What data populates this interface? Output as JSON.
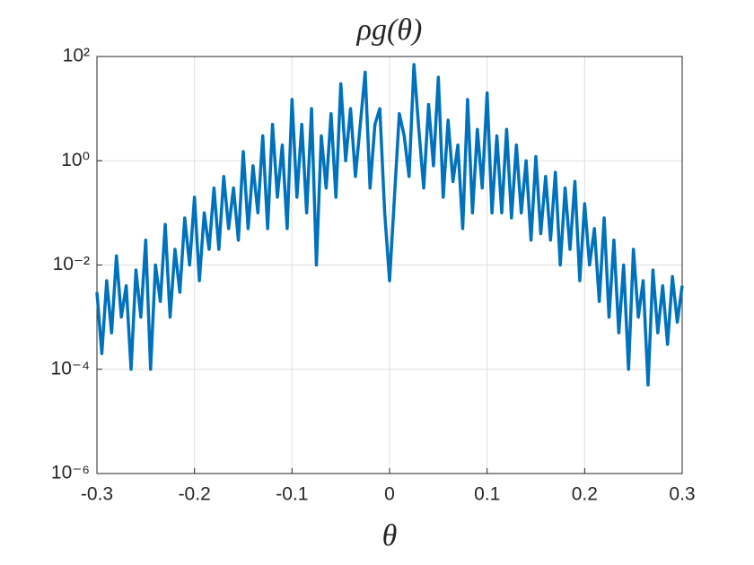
{
  "chart_data": {
    "type": "line",
    "title": "ρg(θ)",
    "xlabel": "θ",
    "x": [
      -0.3,
      -0.295,
      -0.29,
      -0.285,
      -0.28,
      -0.275,
      -0.27,
      -0.265,
      -0.26,
      -0.255,
      -0.25,
      -0.245,
      -0.24,
      -0.235,
      -0.23,
      -0.225,
      -0.22,
      -0.215,
      -0.21,
      -0.205,
      -0.2,
      -0.195,
      -0.19,
      -0.185,
      -0.18,
      -0.175,
      -0.17,
      -0.165,
      -0.16,
      -0.155,
      -0.15,
      -0.145,
      -0.14,
      -0.135,
      -0.13,
      -0.125,
      -0.12,
      -0.115,
      -0.11,
      -0.105,
      -0.1,
      -0.095,
      -0.09,
      -0.085,
      -0.08,
      -0.075,
      -0.07,
      -0.065,
      -0.06,
      -0.055,
      -0.05,
      -0.045,
      -0.04,
      -0.035,
      -0.03,
      -0.025,
      -0.02,
      -0.015,
      -0.01,
      -0.005,
      0,
      0.005,
      0.01,
      0.015,
      0.02,
      0.025,
      0.03,
      0.035,
      0.04,
      0.045,
      0.05,
      0.055,
      0.06,
      0.065,
      0.07,
      0.075,
      0.08,
      0.085,
      0.09,
      0.095,
      0.1,
      0.105,
      0.11,
      0.115,
      0.12,
      0.125,
      0.13,
      0.135,
      0.14,
      0.145,
      0.15,
      0.155,
      0.16,
      0.165,
      0.17,
      0.175,
      0.18,
      0.185,
      0.19,
      0.195,
      0.2,
      0.205,
      0.21,
      0.215,
      0.22,
      0.225,
      0.23,
      0.235,
      0.24,
      0.245,
      0.25,
      0.255,
      0.26,
      0.265,
      0.27,
      0.275,
      0.28,
      0.285,
      0.29,
      0.295,
      0.3
    ],
    "values": [
      0.003,
      0.0002,
      0.005,
      0.0005,
      0.015,
      0.001,
      0.004,
      0.0001,
      0.008,
      0.001,
      0.03,
      0.0001,
      0.01,
      0.002,
      0.06,
      0.001,
      0.02,
      0.003,
      0.08,
      0.01,
      0.2,
      0.005,
      0.1,
      0.02,
      0.3,
      0.02,
      0.5,
      0.05,
      0.3,
      0.03,
      1.5,
      0.05,
      0.8,
      0.1,
      3,
      0.05,
      5,
      0.2,
      2,
      0.05,
      15,
      0.2,
      5,
      0.1,
      10,
      0.01,
      3,
      0.3,
      8,
      0.2,
      30,
      1,
      10,
      0.5,
      5,
      50,
      0.3,
      5,
      10,
      0.1,
      0.005,
      0.2,
      8,
      3,
      0.5,
      70,
      4,
      0.3,
      12,
      0.8,
      40,
      0.2,
      6,
      0.4,
      2,
      0.05,
      15,
      0.1,
      4,
      0.3,
      20,
      0.1,
      3,
      0.1,
      4,
      0.08,
      2,
      0.1,
      1,
      0.03,
      1.2,
      0.04,
      0.5,
      0.03,
      0.6,
      0.01,
      0.3,
      0.02,
      0.4,
      0.005,
      0.15,
      0.01,
      0.05,
      0.002,
      0.08,
      0.001,
      0.03,
      0.0005,
      0.01,
      0.0001,
      0.02,
      0.001,
      0.005,
      5e-05,
      0.008,
      0.0005,
      0.004,
      0.0003,
      0.006,
      0.0008,
      0.004
    ],
    "color": "#0072bd",
    "xlim": [
      -0.3,
      0.3
    ],
    "xticks": [
      -0.3,
      -0.2,
      -0.1,
      0,
      0.1,
      0.2,
      0.3
    ],
    "ylim": [
      1e-06,
      100
    ],
    "ylog": true,
    "yticks": [
      {
        "value": 1e-06,
        "label": "10⁻⁶"
      },
      {
        "value": 0.0001,
        "label": "10⁻⁴"
      },
      {
        "value": 0.01,
        "label": "10⁻²"
      },
      {
        "value": 1,
        "label": "10⁰"
      },
      {
        "value": 100,
        "label": "10²"
      }
    ],
    "grid": true
  }
}
